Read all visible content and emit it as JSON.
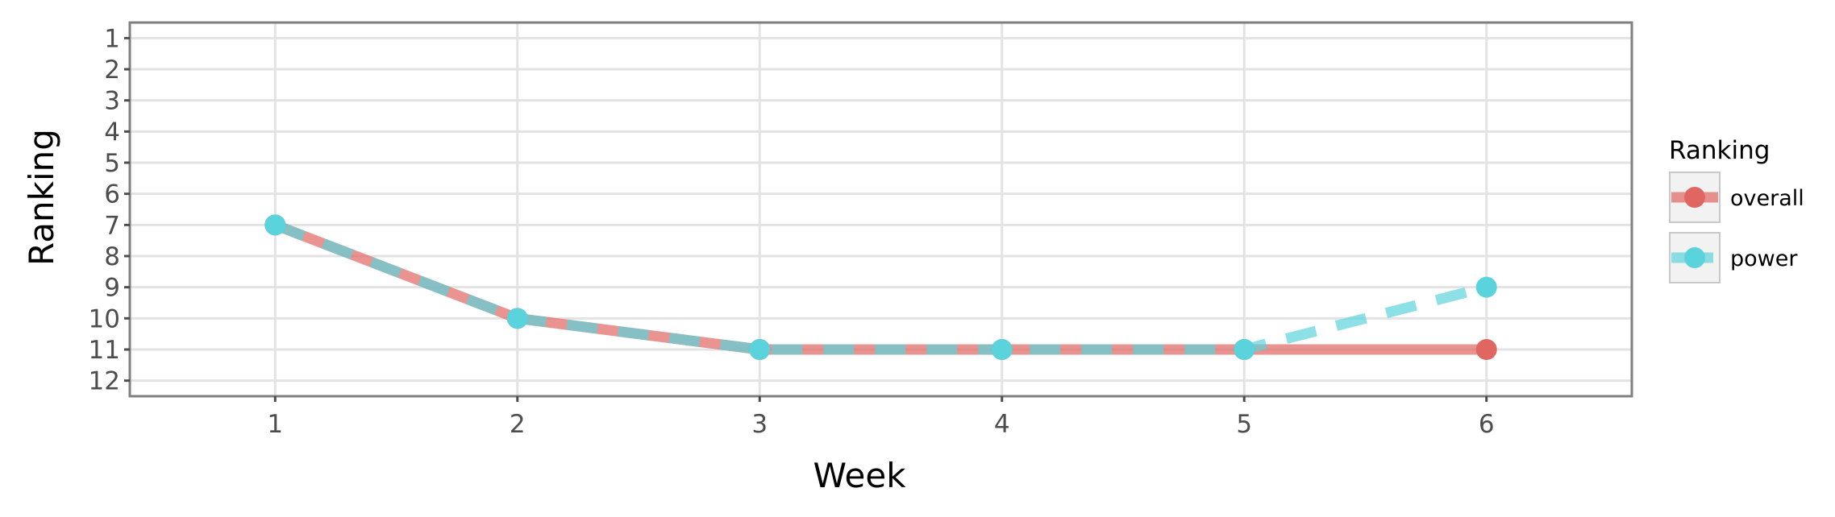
{
  "chart_data": {
    "type": "line",
    "xlabel": "Week",
    "ylabel": "Ranking",
    "x": [
      1,
      2,
      3,
      4,
      5,
      6
    ],
    "xlim": [
      0.4,
      6.6
    ],
    "ylim": [
      12.5,
      0.5
    ],
    "y_reversed": true,
    "x_ticks": [
      1,
      2,
      3,
      4,
      5,
      6
    ],
    "y_ticks": [
      1,
      2,
      3,
      4,
      5,
      6,
      7,
      8,
      9,
      10,
      11,
      12
    ],
    "grid": true,
    "legend": {
      "title": "Ranking",
      "position": "right"
    },
    "series": [
      {
        "name": "overall",
        "values": [
          7,
          10,
          11,
          11,
          11,
          11
        ],
        "color": "#e06661",
        "line_style": "solid"
      },
      {
        "name": "power",
        "values": [
          7,
          10,
          11,
          11,
          11,
          9
        ],
        "color": "#5bd3dc",
        "line_style": "dashed"
      }
    ]
  }
}
